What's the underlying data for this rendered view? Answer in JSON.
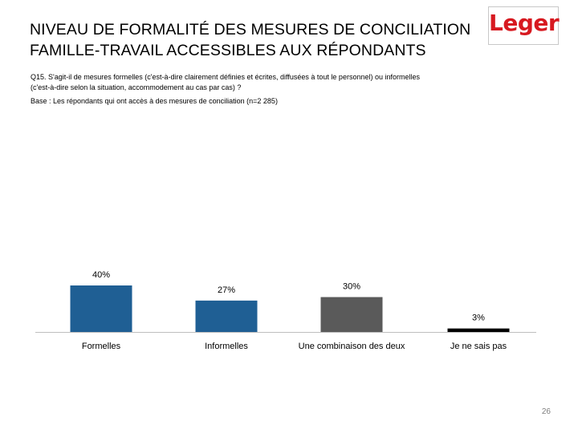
{
  "header": {
    "title_line1": "NIVEAU DE FORMALITÉ DES MESURES DE CONCILIATION",
    "title_line2": "FAMILLE-TRAVAIL ACCESSIBLES AUX RÉPONDANTS",
    "logo_text": "Leger",
    "logo_color": "#d71920"
  },
  "question": {
    "line1": "Q15. S'agit-il de mesures formelles (c'est-à-dire clairement définies et écrites, diffusées à tout le personnel) ou informelles",
    "line2": "(c'est-à-dire selon la situation, accommodement au cas par cas) ?",
    "base": "Base : Les répondants qui ont accès à des mesures de conciliation (n=2 285)"
  },
  "chart_data": {
    "type": "bar",
    "title": "",
    "xlabel": "",
    "ylabel": "",
    "categories": [
      "Formelles",
      "Informelles",
      "Une combinaison des deux",
      "Je ne sais pas"
    ],
    "values": [
      40,
      27,
      30,
      3
    ],
    "data_labels": [
      "40%",
      "27%",
      "30%",
      "3%"
    ],
    "colors": [
      "#1f5f94",
      "#1f5f94",
      "#5a5a5a",
      "#000000"
    ],
    "ylim": [
      0,
      40
    ],
    "grid": false,
    "legend": "none"
  },
  "footer": {
    "page_number": "26"
  }
}
